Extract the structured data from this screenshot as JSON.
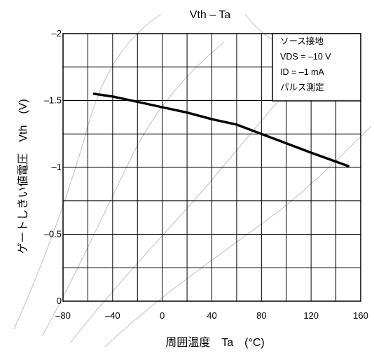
{
  "chart_data": {
    "type": "line",
    "title": "Vth – Ta",
    "xlabel": "周囲温度　Ta　(°C)",
    "ylabel": "ゲートしきい値電圧　Vth　(V)",
    "xlim": [
      -80,
      160
    ],
    "ylim": [
      0,
      -2
    ],
    "x_ticks": [
      "–80",
      "–40",
      "0",
      "40",
      "80",
      "120",
      "160"
    ],
    "y_ticks": [
      "0",
      "–0.5",
      "–1",
      "–1.5",
      "–2"
    ],
    "grid": true,
    "conditions": [
      "ソース接地",
      "VDS = –10 V",
      "ID = –1 mA",
      "パルス測定"
    ],
    "series": [
      {
        "x": [
          -55,
          -40,
          -20,
          0,
          20,
          40,
          60,
          80,
          100,
          120,
          150
        ],
        "values": [
          -1.55,
          -1.53,
          -1.49,
          -1.45,
          -1.41,
          -1.36,
          -1.32,
          -1.25,
          -1.18,
          -1.11,
          -1.01
        ]
      }
    ]
  }
}
